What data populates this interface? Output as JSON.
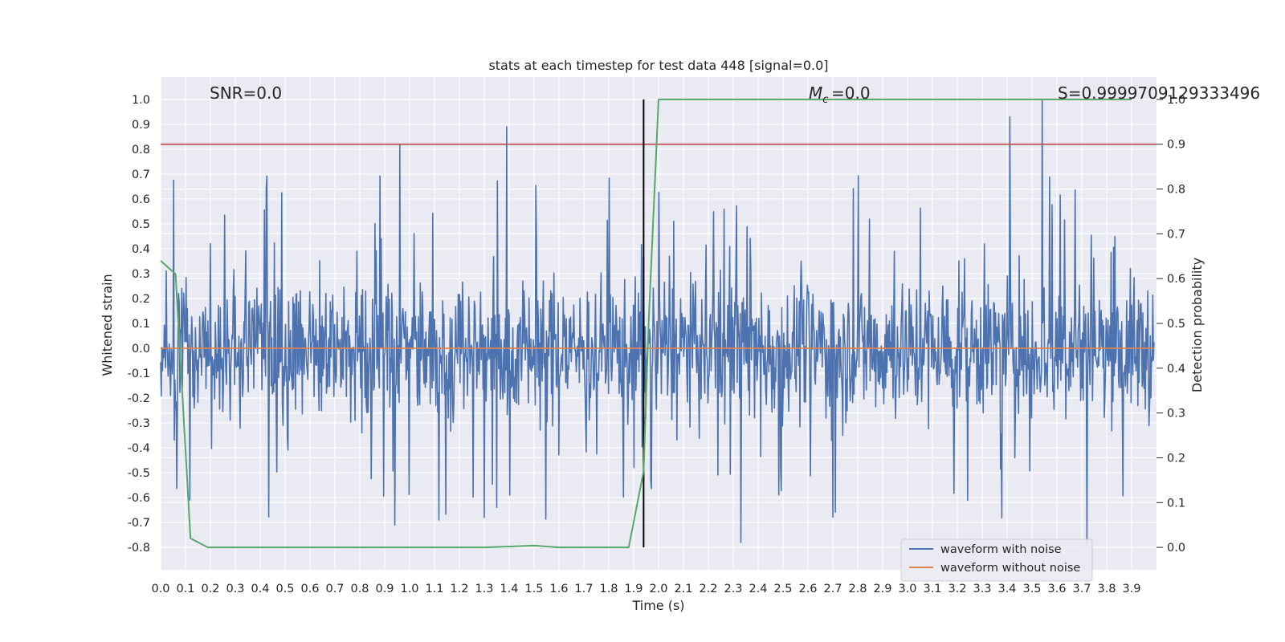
{
  "chart_data": {
    "type": "line",
    "title": "stats at each timestep for test data 448 [signal=0.0]",
    "xlabel": "Time (s)",
    "ylabel": "Whitened strain",
    "y2label": "Detection probability",
    "xlim": [
      0.0,
      4.0
    ],
    "ylim": [
      -0.89,
      1.09
    ],
    "y2lim": [
      -0.05,
      1.05
    ],
    "x_ticks": [
      "0.0",
      "0.1",
      "0.2",
      "0.3",
      "0.4",
      "0.5",
      "0.6",
      "0.7",
      "0.8",
      "0.9",
      "1.0",
      "1.1",
      "1.2",
      "1.3",
      "1.4",
      "1.5",
      "1.6",
      "1.7",
      "1.8",
      "1.9",
      "2.0",
      "2.1",
      "2.2",
      "2.3",
      "2.4",
      "2.5",
      "2.6",
      "2.7",
      "2.8",
      "2.9",
      "3.0",
      "3.1",
      "3.2",
      "3.3",
      "3.4",
      "3.5",
      "3.6",
      "3.7",
      "3.8",
      "3.9"
    ],
    "y_ticks": [
      "1.0",
      "0.9",
      "0.8",
      "0.7",
      "0.6",
      "0.5",
      "0.4",
      "0.3",
      "0.2",
      "0.1",
      "0.0",
      "-0.1",
      "-0.2",
      "-0.3",
      "-0.4",
      "-0.5",
      "-0.6",
      "-0.7",
      "-0.8"
    ],
    "y2_ticks": [
      "1.0",
      "0.9",
      "0.8",
      "0.7",
      "0.6",
      "0.5",
      "0.4",
      "0.3",
      "0.2",
      "0.1",
      "0.0"
    ],
    "annotations": {
      "snr": "SNR=0.0",
      "mc": "=0.0",
      "s": "S=0.9999709129333496"
    },
    "noise_peaks": [
      {
        "x": 0.96,
        "y": 0.82
      },
      {
        "x": 1.39,
        "y": 0.89
      },
      {
        "x": 3.41,
        "y": 0.93
      },
      {
        "x": 3.54,
        "y": 1.0
      },
      {
        "x": 3.72,
        "y": -0.79
      },
      {
        "x": 2.33,
        "y": -0.78
      },
      {
        "x": 1.3,
        "y": -0.68
      },
      {
        "x": 0.94,
        "y": -0.71
      }
    ],
    "threshold_line": {
      "y2": 0.9,
      "color": "#c44e52"
    },
    "vertical_marker": {
      "x": 1.94,
      "color": "#000000"
    },
    "series": [
      {
        "name": "waveform with noise",
        "color": "#4c72b0",
        "style": "dense noise, approx range -0.8 to 1.0"
      },
      {
        "name": "waveform without noise",
        "color": "#dd8452",
        "x": [
          0.0,
          4.0
        ],
        "y": [
          0.0,
          0.0
        ]
      },
      {
        "color": "#55a868",
        "axis": "y2",
        "x": [
          0.0,
          0.06,
          0.12,
          0.19,
          0.5,
          1.0,
          1.3,
          1.4,
          1.5,
          1.6,
          1.7,
          1.88,
          1.94,
          1.96,
          2.0,
          2.5,
          3.0,
          3.5,
          3.9
        ],
        "y": [
          0.64,
          0.61,
          0.02,
          0.0,
          0.0,
          0.0,
          0.0,
          0.002,
          0.004,
          0.0,
          0.0,
          0.0,
          0.17,
          0.5,
          1.0,
          1.0,
          1.0,
          1.0,
          1.0
        ]
      }
    ],
    "legend": {
      "position": "lower-right",
      "entries": [
        "waveform with noise",
        "waveform without noise"
      ]
    },
    "grid": true,
    "colors": {
      "plot_bg": "#eaeaf2",
      "grid": "#ffffff"
    }
  }
}
